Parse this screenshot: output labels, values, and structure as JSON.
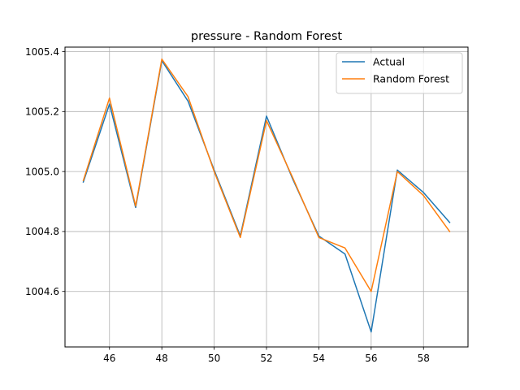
{
  "chart_data": {
    "type": "line",
    "title": "pressure - Random Forest",
    "xlabel": "",
    "ylabel": "",
    "x": [
      45,
      46,
      47,
      48,
      49,
      50,
      51,
      52,
      53,
      54,
      55,
      56,
      57,
      58,
      59
    ],
    "series": [
      {
        "name": "Actual",
        "color": "#1f77b4",
        "values": [
          1004.965,
          1005.225,
          1004.88,
          1005.37,
          1005.235,
          1005.005,
          1004.785,
          1005.185,
          1004.975,
          1004.785,
          1004.725,
          1004.465,
          1005.005,
          1004.93,
          1004.83
        ]
      },
      {
        "name": "Random Forest",
        "color": "#ff7f0e",
        "values": [
          1004.97,
          1005.245,
          1004.885,
          1005.375,
          1005.25,
          1005.0,
          1004.78,
          1005.17,
          1004.98,
          1004.78,
          1004.745,
          1004.6,
          1005.0,
          1004.92,
          1004.8
        ]
      }
    ],
    "xlim": [
      44.3,
      59.7
    ],
    "ylim": [
      1004.415,
      1005.415
    ],
    "xticks": [
      46,
      48,
      50,
      52,
      54,
      56,
      58
    ],
    "yticks": [
      1004.6,
      1004.8,
      1005.0,
      1005.2,
      1005.4
    ],
    "ytick_labels": [
      "1004.6",
      "1004.8",
      "1005.0",
      "1005.2",
      "1005.4"
    ],
    "grid": true,
    "legend_position": "top-right"
  }
}
